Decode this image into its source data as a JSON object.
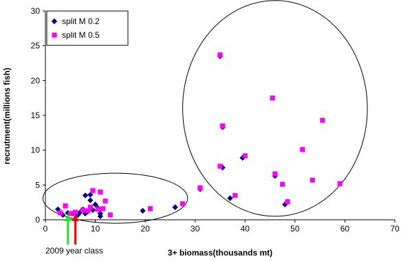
{
  "chart_data": {
    "type": "scatter",
    "title": "",
    "xlabel": "3+ biomass(thousands mt)",
    "ylabel": "recrutment(millions fish)",
    "xlim": [
      0,
      70
    ],
    "ylim": [
      0,
      30
    ],
    "x_ticks": [
      0,
      10,
      20,
      30,
      40,
      50,
      60,
      70
    ],
    "y_ticks": [
      0,
      5,
      10,
      15,
      20,
      25,
      30
    ],
    "grid": false,
    "legend_position": "top-left",
    "series": [
      {
        "name": "split M 0.2",
        "marker": "diamond",
        "color": "#000080",
        "points": [
          [
            2.5,
            1.5
          ],
          [
            3.5,
            0.7
          ],
          [
            4.5,
            1.0
          ],
          [
            5.5,
            0.9
          ],
          [
            6.5,
            0.7
          ],
          [
            7.0,
            1.1
          ],
          [
            7.5,
            1.5
          ],
          [
            8.0,
            0.9
          ],
          [
            8.5,
            1.2
          ],
          [
            8.0,
            3.5
          ],
          [
            9.0,
            3.6
          ],
          [
            9.0,
            2.8
          ],
          [
            9.5,
            1.4
          ],
          [
            10.0,
            2.2
          ],
          [
            10.5,
            1.7
          ],
          [
            11.0,
            0.9
          ],
          [
            11.0,
            0.5
          ],
          [
            19.5,
            1.3
          ],
          [
            26.0,
            1.8
          ],
          [
            31.0,
            4.4
          ],
          [
            35.0,
            23.5
          ],
          [
            35.5,
            13.3
          ],
          [
            35.5,
            7.5
          ],
          [
            37.0,
            3.1
          ],
          [
            39.5,
            8.9
          ],
          [
            46.0,
            6.3
          ],
          [
            48.0,
            2.2
          ]
        ]
      },
      {
        "name": "split M 0.5",
        "marker": "square",
        "color": "#ff00ff",
        "points": [
          [
            3.0,
            1.0
          ],
          [
            4.0,
            2.0
          ],
          [
            5.0,
            0.9
          ],
          [
            6.0,
            1.1
          ],
          [
            7.5,
            1.4
          ],
          [
            8.5,
            1.3
          ],
          [
            9.0,
            1.8
          ],
          [
            9.5,
            4.2
          ],
          [
            10.5,
            1.5
          ],
          [
            11.0,
            4.0
          ],
          [
            11.5,
            1.6
          ],
          [
            12.0,
            2.7
          ],
          [
            13.0,
            0.7
          ],
          [
            21.0,
            1.6
          ],
          [
            27.5,
            2.3
          ],
          [
            31.0,
            4.6
          ],
          [
            35.0,
            23.7
          ],
          [
            35.5,
            13.5
          ],
          [
            35.0,
            7.7
          ],
          [
            38.0,
            3.5
          ],
          [
            40.0,
            9.2
          ],
          [
            45.5,
            17.5
          ],
          [
            46.0,
            6.6
          ],
          [
            47.5,
            5.1
          ],
          [
            48.5,
            2.6
          ],
          [
            51.5,
            10.1
          ],
          [
            53.5,
            5.7
          ],
          [
            55.5,
            14.3
          ],
          [
            59.0,
            5.2
          ]
        ]
      }
    ],
    "annotations": {
      "year_class_label": "2009 year class",
      "arrows": [
        {
          "x": 4.5,
          "color": "#00ff00"
        },
        {
          "x": 6.0,
          "color": "#ff0000"
        }
      ]
    },
    "ellipses": [
      {
        "cx": 14.0,
        "cy": 3.1,
        "rx": 14.5,
        "ry": 3.6
      },
      {
        "cx": 46.0,
        "cy": 16.0,
        "rx": 18.5,
        "ry": 15.5
      }
    ]
  }
}
